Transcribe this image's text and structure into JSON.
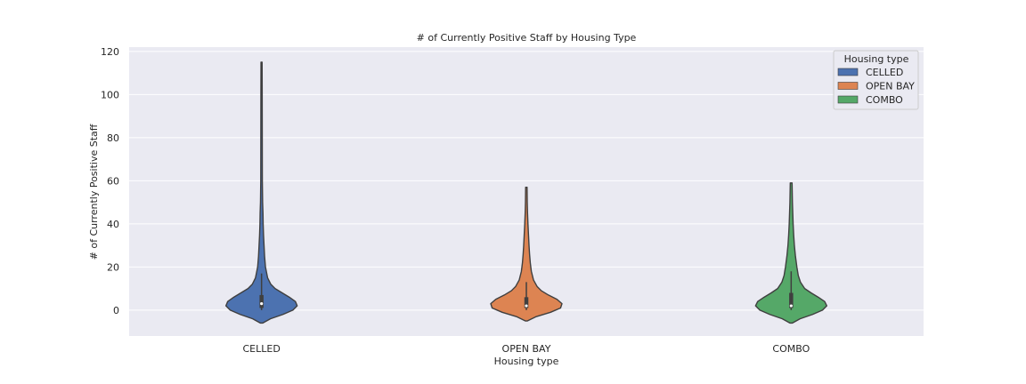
{
  "chart_data": {
    "type": "violin",
    "title": "# of Currently Positive Staff by Housing Type",
    "xlabel": "Housing type",
    "ylabel": "# of Currently Positive Staff",
    "ylim": [
      -12,
      122
    ],
    "yticks": [
      0,
      20,
      40,
      60,
      80,
      100,
      120
    ],
    "grid": true,
    "legend": {
      "title": "Housing type",
      "placement": "top-right"
    },
    "categories": [
      "CELLED",
      "OPEN BAY",
      "COMBO"
    ],
    "series": [
      {
        "name": "CELLED",
        "color": "#4c72b0",
        "min": 0,
        "q1": 1,
        "median": 3,
        "q3": 7,
        "max": 115,
        "whisker_low": 0,
        "whisker_high": 17,
        "extent": [
          -6,
          115
        ],
        "density": [
          [
            -6,
            0.03
          ],
          [
            -4,
            0.25
          ],
          [
            -2,
            0.6
          ],
          [
            0,
            0.88
          ],
          [
            2,
            1.0
          ],
          [
            4,
            0.95
          ],
          [
            6,
            0.78
          ],
          [
            8,
            0.58
          ],
          [
            10,
            0.38
          ],
          [
            12,
            0.26
          ],
          [
            15,
            0.17
          ],
          [
            20,
            0.11
          ],
          [
            25,
            0.085
          ],
          [
            30,
            0.07
          ],
          [
            35,
            0.055
          ],
          [
            40,
            0.045
          ],
          [
            45,
            0.04
          ],
          [
            50,
            0.03
          ],
          [
            60,
            0.022
          ],
          [
            80,
            0.02
          ],
          [
            100,
            0.018
          ],
          [
            115,
            0.015
          ]
        ]
      },
      {
        "name": "OPEN BAY",
        "color": "#dd8452",
        "min": 0,
        "q1": 1,
        "median": 2,
        "q3": 6,
        "max": 57,
        "whisker_low": 0,
        "whisker_high": 13,
        "extent": [
          -5,
          57
        ],
        "density": [
          [
            -5,
            0.03
          ],
          [
            -3,
            0.28
          ],
          [
            -1,
            0.68
          ],
          [
            1,
            0.96
          ],
          [
            3,
            1.0
          ],
          [
            5,
            0.86
          ],
          [
            7,
            0.62
          ],
          [
            9,
            0.42
          ],
          [
            11,
            0.3
          ],
          [
            14,
            0.2
          ],
          [
            18,
            0.14
          ],
          [
            22,
            0.11
          ],
          [
            26,
            0.09
          ],
          [
            30,
            0.075
          ],
          [
            35,
            0.06
          ],
          [
            40,
            0.045
          ],
          [
            45,
            0.033
          ],
          [
            50,
            0.025
          ],
          [
            57,
            0.02
          ]
        ]
      },
      {
        "name": "COMBO",
        "color": "#55a868",
        "min": 0,
        "q1": 1,
        "median": 2,
        "q3": 8,
        "max": 59,
        "whisker_low": 0,
        "whisker_high": 18,
        "extent": [
          -6,
          59
        ],
        "density": [
          [
            -6,
            0.03
          ],
          [
            -4,
            0.25
          ],
          [
            -2,
            0.6
          ],
          [
            0,
            0.88
          ],
          [
            2,
            1.0
          ],
          [
            4,
            0.94
          ],
          [
            6,
            0.76
          ],
          [
            8,
            0.56
          ],
          [
            10,
            0.38
          ],
          [
            13,
            0.26
          ],
          [
            16,
            0.2
          ],
          [
            20,
            0.16
          ],
          [
            25,
            0.12
          ],
          [
            30,
            0.09
          ],
          [
            35,
            0.07
          ],
          [
            40,
            0.055
          ],
          [
            45,
            0.045
          ],
          [
            50,
            0.035
          ],
          [
            59,
            0.025
          ]
        ]
      }
    ]
  }
}
